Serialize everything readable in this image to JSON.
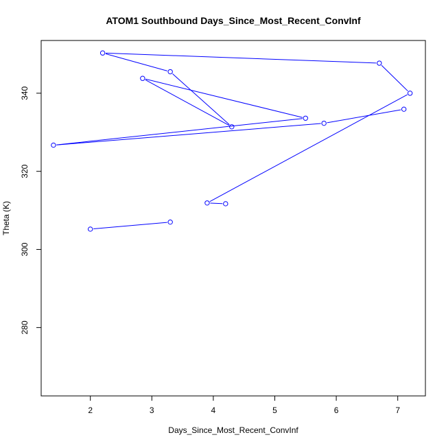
{
  "chart_data": {
    "type": "line",
    "title": "ATOM1 Southbound Days_Since_Most_Recent_ConvInf",
    "xlabel": "Days_Since_Most_Recent_ConvInf",
    "ylabel": "Theta (K)",
    "xlim": [
      1.2,
      7.45
    ],
    "ylim": [
      262.5,
      353.5
    ],
    "x_ticks": [
      2,
      3,
      4,
      5,
      6,
      7
    ],
    "y_ticks": [
      280,
      300,
      320,
      340
    ],
    "grid": false,
    "line_color": "#0000ff",
    "marker": "open-circle",
    "series": [
      {
        "x": [
          4.2,
          3.9,
          7.2,
          6.7,
          2.2,
          3.3,
          4.3,
          2.85,
          5.5,
          1.4,
          5.8,
          7.1
        ],
        "y": [
          311.7,
          311.9,
          340.0,
          347.7,
          350.3,
          345.5,
          331.4,
          343.8,
          333.6,
          326.7,
          332.3,
          335.9
        ]
      },
      {
        "x": [
          2.0,
          3.3
        ],
        "y": [
          305.2,
          307.0
        ]
      }
    ]
  }
}
